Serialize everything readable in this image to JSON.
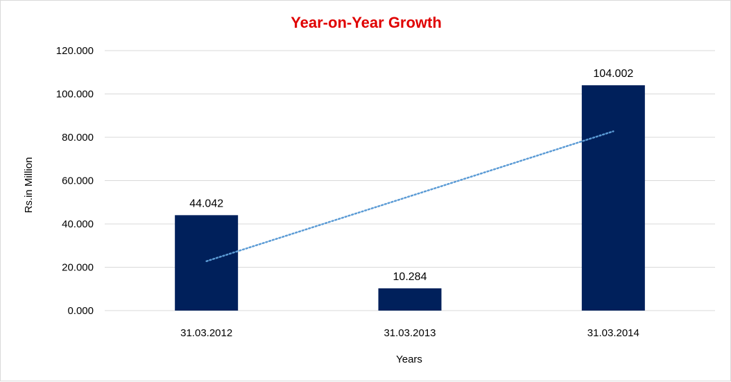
{
  "chart_data": {
    "type": "bar",
    "title": "Year-on-Year Growth",
    "xlabel": "Years",
    "ylabel": "Rs.in Million",
    "categories": [
      "31.03.2012",
      "31.03.2013",
      "31.03.2014"
    ],
    "values": [
      44.042,
      10.284,
      104.002
    ],
    "data_labels": [
      "44.042",
      "10.284",
      "104.002"
    ],
    "ylim": [
      0,
      120
    ],
    "yticks": [
      0,
      20,
      40,
      60,
      80,
      100,
      120
    ],
    "ytick_labels": [
      "0.000",
      "20.000",
      "40.000",
      "60.000",
      "80.000",
      "100.000",
      "120.000"
    ],
    "trendline": {
      "type": "linear",
      "style": "dotted"
    },
    "grid": true,
    "legend": "none"
  },
  "colors": {
    "title": "#e00000",
    "bar": "#00205b",
    "trendline": "#5b9bd5",
    "grid": "#d9d9d9"
  }
}
